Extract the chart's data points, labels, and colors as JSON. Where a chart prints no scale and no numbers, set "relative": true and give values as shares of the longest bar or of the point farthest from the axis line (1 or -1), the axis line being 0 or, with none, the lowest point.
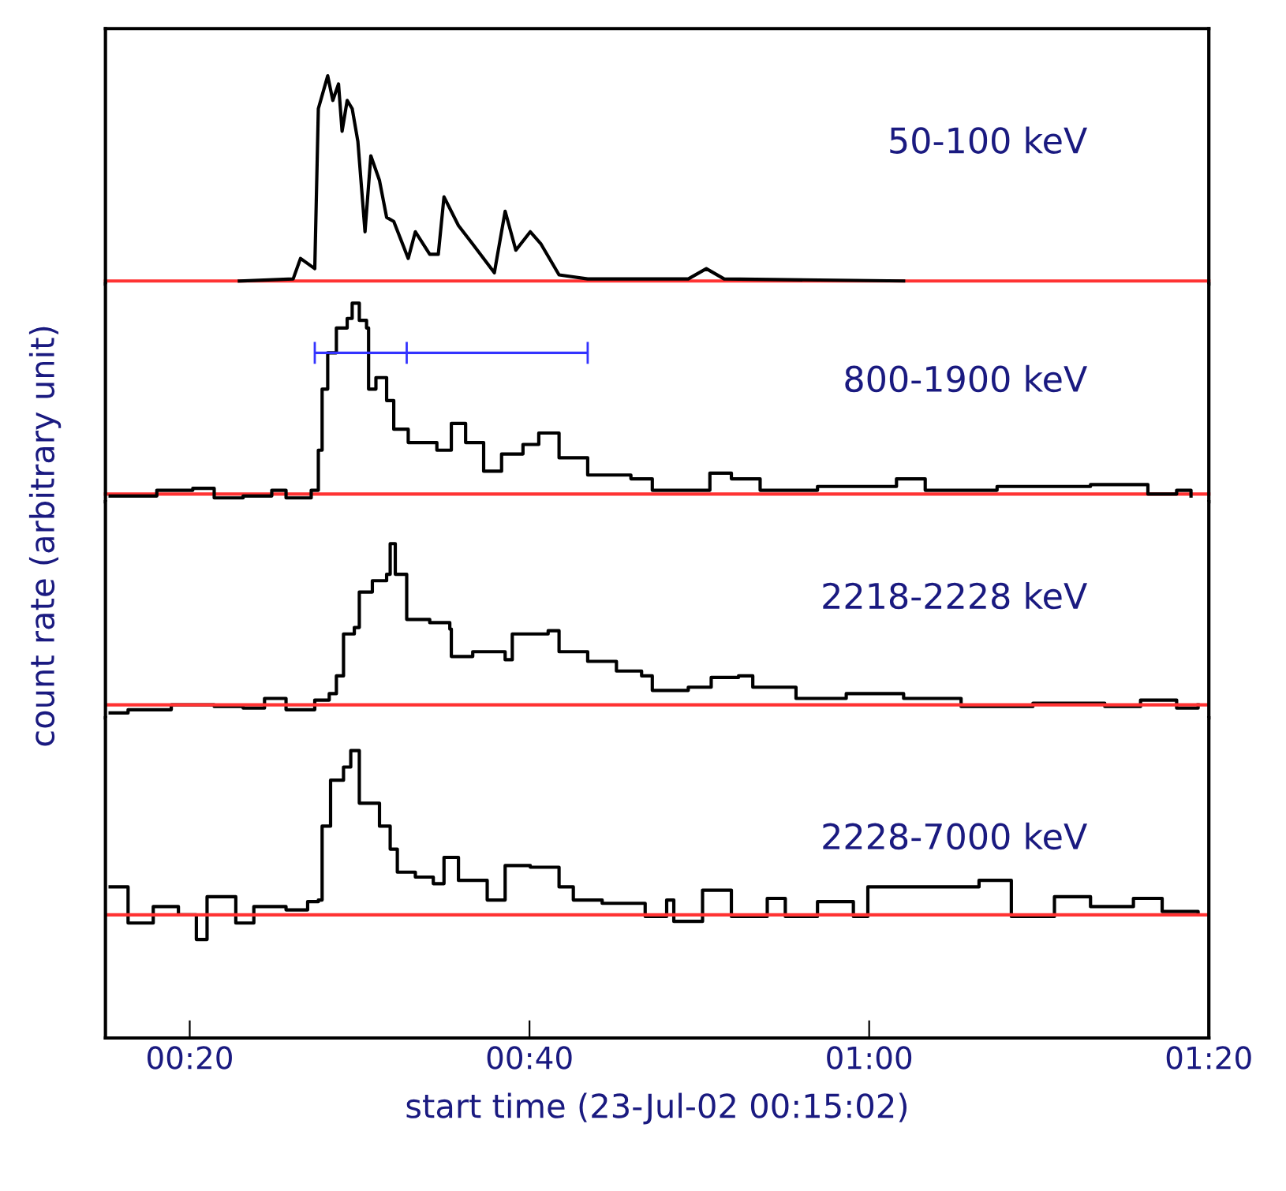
{
  "chart_data": [
    {
      "type": "line",
      "relative": true,
      "ylabel": "count rate (arbitrary unit)",
      "xlim": [
        0.2506,
        1.3333
      ],
      "tick_labels": false,
      "series": [
        {
          "name": "50-100 keV",
          "color": "#000000",
          "x": [
            0.382,
            0.4348,
            0.442,
            0.456,
            0.4595,
            0.4687,
            0.4737,
            0.4793,
            0.4828,
            0.4878,
            0.4927,
            0.4983,
            0.5053,
            0.511,
            0.5195,
            0.5265,
            0.5335,
            0.5477,
            0.5547,
            0.5688,
            0.5772,
            0.5828,
            0.597,
            0.611,
            0.6322,
            0.6428,
            0.6533,
            0.6675,
            0.678,
            0.6957,
            0.7238,
            0.8225,
            0.8402,
            0.8577,
            1.0338
          ],
          "values": [
            0,
            0.01,
            0.11,
            0.06,
            0.84,
            1.0,
            0.88,
            0.96,
            0.73,
            0.88,
            0.84,
            0.68,
            0.24,
            0.61,
            0.49,
            0.31,
            0.29,
            0.11,
            0.24,
            0.13,
            0.13,
            0.41,
            0.27,
            0.18,
            0.04,
            0.34,
            0.15,
            0.24,
            0.18,
            0.03,
            0.01,
            0.01,
            0.06,
            0.01,
            0
          ]
        }
      ]
    },
    {
      "type": "step",
      "relative": true,
      "xlim": [
        0.2506,
        1.3333
      ],
      "tick_labels": false,
      "series": [
        {
          "name": "800-1900 keV",
          "color": "#000000",
          "x": [
            0.2552,
            0.301,
            0.3363,
            0.3573,
            0.3857,
            0.4138,
            0.4278,
            0.4525,
            0.456,
            0.4595,
            0.4632,
            0.4687,
            0.4772,
            0.4878,
            0.4927,
            0.4997,
            0.5068,
            0.5088,
            0.516,
            0.5265,
            0.5335,
            0.5477,
            0.5758,
            0.59,
            0.604,
            0.6217,
            0.6393,
            0.6603,
            0.6758,
            0.6957,
            0.7238,
            0.7662,
            0.7872,
            0.8437,
            0.8648,
            0.893,
            0.9493,
            1.0268,
            1.055,
            1.1255,
            1.2172,
            1.2735,
            1.3017,
            1.3158
          ],
          "values": [
            -0.01,
            0.02,
            0.03,
            -0.02,
            -0.01,
            0.02,
            -0.02,
            0.02,
            0.02,
            0.23,
            0.55,
            0.74,
            0.87,
            0.92,
            1.0,
            0.91,
            0.87,
            0.55,
            0.61,
            0.49,
            0.34,
            0.27,
            0.23,
            0.37,
            0.27,
            0.12,
            0.21,
            0.26,
            0.32,
            0.19,
            0.1,
            0.08,
            0.02,
            0.11,
            0.08,
            0.02,
            0.04,
            0.08,
            0.02,
            0.04,
            0.05,
            0.0,
            0.02,
            -0.01
          ]
        },
        {
          "type": "scatter",
          "color": "#3333ff",
          "marker": "cross",
          "x": [
            0.5462
          ],
          "values": [
            0.74
          ],
          "xerrors": [
            [
              0.456,
              0.7238
            ]
          ]
        }
      ]
    },
    {
      "type": "step",
      "relative": true,
      "xlim": [
        0.2506,
        1.3333
      ],
      "tick_labels": false,
      "ref_lines": [
        {
          "axis": "y",
          "value": 0,
          "color": "#ff3333"
        }
      ],
      "series": [
        {
          "name": "2218-2228 keV",
          "color": "#000000",
          "x": [
            0.2552,
            0.2728,
            0.3152,
            0.3573,
            0.3857,
            0.4067,
            0.4278,
            0.456,
            0.4702,
            0.4772,
            0.4842,
            0.4948,
            0.4997,
            0.5125,
            0.5265,
            0.53,
            0.535,
            0.5462,
            0.5688,
            0.5885,
            0.59,
            0.611,
            0.6428,
            0.6498,
            0.685,
            0.6957,
            0.7238,
            0.752,
            0.7767,
            0.7872,
            0.8225,
            0.845,
            0.8718,
            0.8858,
            0.9282,
            0.9775,
            1.0338,
            1.0902,
            1.1607,
            1.2312,
            1.2663,
            1.3017,
            1.3228
          ],
          "values": [
            -0.05,
            -0.03,
            0.0,
            -0.01,
            -0.02,
            0.04,
            -0.03,
            0.03,
            0.07,
            0.18,
            0.44,
            0.48,
            0.7,
            0.77,
            0.81,
            1.0,
            0.81,
            0.53,
            0.51,
            0.47,
            0.3,
            0.33,
            0.28,
            0.44,
            0.46,
            0.33,
            0.27,
            0.21,
            0.18,
            0.09,
            0.11,
            0.17,
            0.18,
            0.11,
            0.04,
            0.07,
            0.04,
            -0.01,
            0.01,
            -0.01,
            0.03,
            -0.02,
            0.0
          ]
        }
      ]
    },
    {
      "type": "step",
      "relative": true,
      "xlabel": "start time (23-Jul-02 00:15:02)",
      "xlim": [
        0.2506,
        1.3333
      ],
      "xticks": [
        {
          "value": 0.3333,
          "label": "00:20"
        },
        {
          "value": 0.6667,
          "label": "00:40"
        },
        {
          "value": 1.0,
          "label": "01:00"
        },
        {
          "value": 1.3333,
          "label": "01:20"
        }
      ],
      "tick_labels": "x",
      "ref_lines": [
        {
          "axis": "y",
          "value": 0,
          "color": "#ff3333"
        }
      ],
      "series": [
        {
          "name": "2228-7000 keV",
          "color": "#000000",
          "x": [
            0.2552,
            0.2728,
            0.2975,
            0.3222,
            0.3398,
            0.3503,
            0.3785,
            0.3962,
            0.4278,
            0.449,
            0.4595,
            0.4632,
            0.4715,
            0.4842,
            0.4913,
            0.4997,
            0.5195,
            0.53,
            0.537,
            0.5547,
            0.5723,
            0.5828,
            0.597,
            0.6252,
            0.6428,
            0.6675,
            0.6957,
            0.7097,
            0.738,
            0.7802,
            0.8013,
            0.8083,
            0.8365,
            0.8648,
            0.9,
            0.9177,
            0.9493,
            0.9845,
            0.9987,
            1.062,
            1.1078,
            1.1395,
            1.1818,
            1.2172,
            1.2593,
            1.2875,
            1.3228
          ],
          "values": [
            0.17,
            -0.05,
            0.05,
            0.0,
            -0.15,
            0.11,
            -0.05,
            0.05,
            0.03,
            0.08,
            0.09,
            0.54,
            0.82,
            0.9,
            1.0,
            0.68,
            0.54,
            0.4,
            0.26,
            0.23,
            0.19,
            0.35,
            0.21,
            0.09,
            0.3,
            0.29,
            0.17,
            0.09,
            0.07,
            -0.01,
            0.09,
            -0.04,
            0.15,
            -0.01,
            0.1,
            -0.01,
            0.08,
            -0.01,
            0.17,
            0.17,
            0.21,
            -0.01,
            0.11,
            0.05,
            0.1,
            0.02,
            0.01
          ]
        }
      ]
    }
  ]
}
